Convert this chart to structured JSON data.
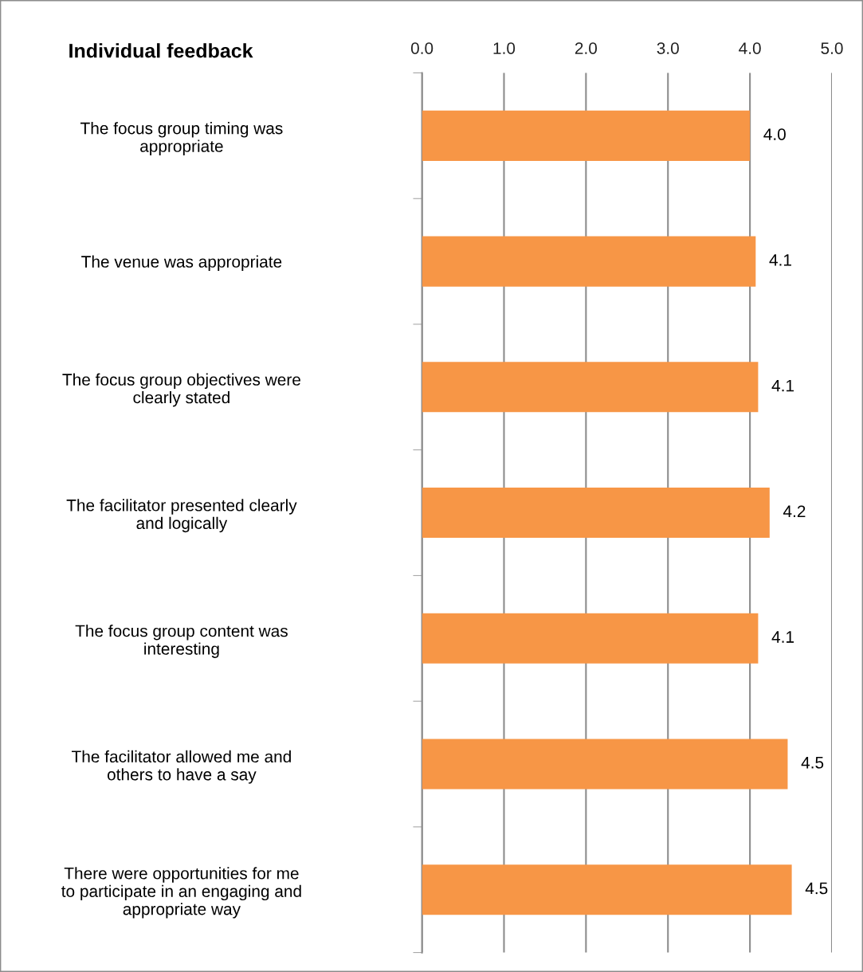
{
  "chart_data": {
    "type": "bar",
    "orientation": "horizontal",
    "title": "Individual feedback",
    "categories": [
      "The focus group timing was\nappropriate",
      "The venue was appropriate",
      "The focus group objectives were\nclearly stated",
      "The facilitator presented clearly\nand logically",
      "The focus group content was\ninteresting",
      "The facilitator allowed me and\nothers to have a say",
      "There were opportunities for me\nto participate in an engaging and\nappropriate way"
    ],
    "values": [
      4.0,
      4.07,
      4.1,
      4.24,
      4.1,
      4.46,
      4.51
    ],
    "value_labels": [
      "4.0",
      "4.1",
      "4.1",
      "4.2",
      "4.1",
      "4.5",
      "4.5"
    ],
    "color": "#f79646",
    "xlim": [
      0,
      5
    ],
    "xticks": [
      {
        "value": 0,
        "label": "0.0"
      },
      {
        "value": 1,
        "label": "1.0"
      },
      {
        "value": 2,
        "label": "2.0"
      },
      {
        "value": 3,
        "label": "3.0"
      },
      {
        "value": 4,
        "label": "4.0"
      },
      {
        "value": 5,
        "label": "5.0"
      }
    ],
    "grid": "x"
  }
}
